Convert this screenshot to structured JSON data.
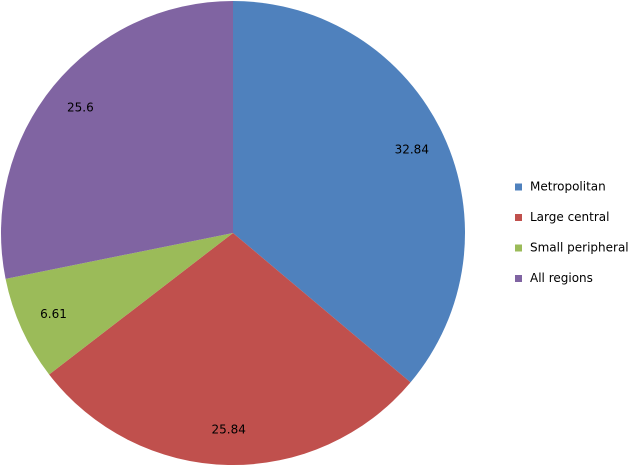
{
  "chart_data": {
    "type": "pie",
    "categories": [
      "Metropolitan",
      "Large central",
      "Small peripheral",
      "All regions"
    ],
    "values": [
      32.84,
      25.84,
      6.61,
      25.6
    ],
    "colors": [
      "#4f81bd",
      "#c0504d",
      "#9bbb59",
      "#8064a2"
    ],
    "legend": "right"
  }
}
